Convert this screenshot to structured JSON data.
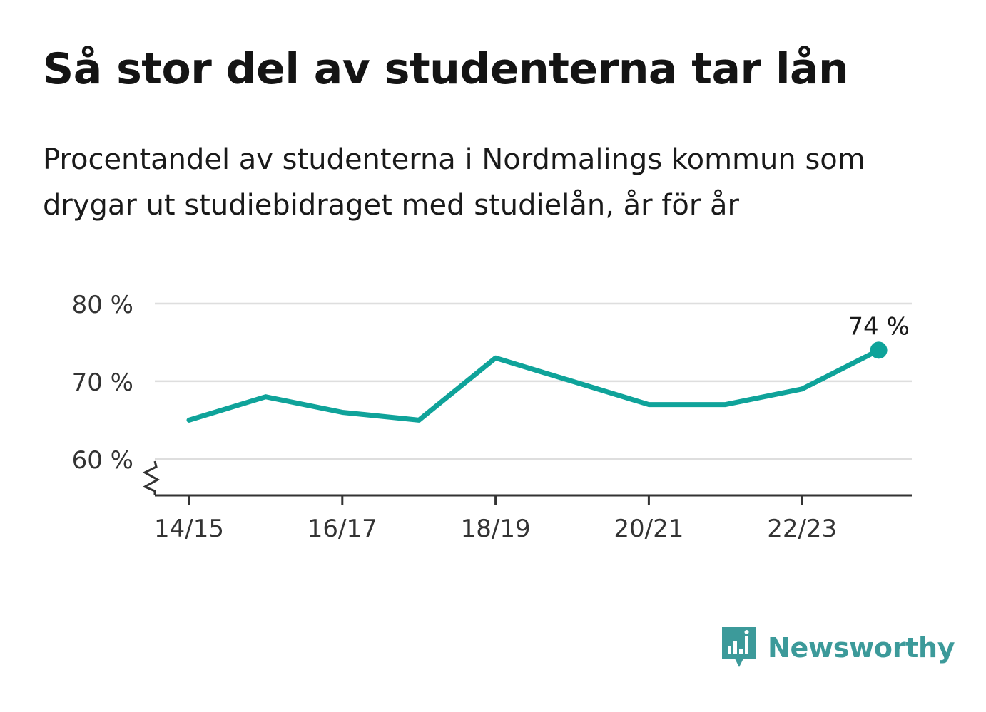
{
  "title": "Så stor del av studenterna tar lån",
  "subtitle": "Procentandel av studenterna i Nordmalings kommun som drygar ut studiebidraget med studielån, år för år",
  "brand": {
    "name": "Newsworthy",
    "icon": "newsworthy-logo-icon",
    "color": "#3c9a9a"
  },
  "chart_data": {
    "type": "line",
    "categories": [
      "14/15",
      "15/16",
      "16/17",
      "17/18",
      "18/19",
      "19/20",
      "20/21",
      "21/22",
      "22/23",
      "23/24"
    ],
    "series": [
      {
        "values": [
          65,
          68,
          66,
          65,
          73,
          70,
          67,
          67,
          69,
          74
        ]
      }
    ],
    "x_tick_labels": [
      "14/15",
      "16/17",
      "18/19",
      "20/21",
      "22/23"
    ],
    "y_ticks": [
      60,
      70,
      80
    ],
    "y_tick_labels": [
      "60 %",
      "70 %",
      "80 %"
    ],
    "ylim": [
      55.3,
      80
    ],
    "y_axis_break": true,
    "last_value_label": "74 %",
    "grid": true,
    "color": "#0fa39a",
    "gridColor": "#dedede",
    "axisColor": "#333333"
  }
}
